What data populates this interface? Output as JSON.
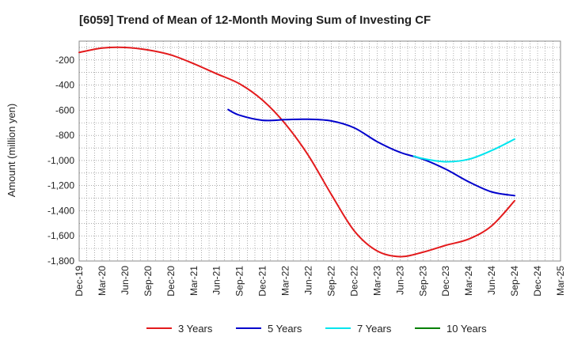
{
  "chart_data": {
    "type": "line",
    "title": "[6059]  Trend of Mean of 12-Month Moving Sum of Investing CF",
    "xlabel": "",
    "ylabel": "Amount (million yen)",
    "ylim": [
      -1800,
      -50
    ],
    "yticks": [
      -200,
      -400,
      -600,
      -800,
      -1000,
      -1200,
      -1400,
      -1600,
      -1800
    ],
    "ytick_labels": [
      "-200",
      "-400",
      "-600",
      "-800",
      "-1,000",
      "-1,200",
      "-1,400",
      "-1,600",
      "-1,800"
    ],
    "categories": [
      "Dec-19",
      "Mar-20",
      "Jun-20",
      "Sep-20",
      "Dec-20",
      "Mar-21",
      "Jun-21",
      "Sep-21",
      "Dec-21",
      "Mar-22",
      "Jun-22",
      "Sep-22",
      "Dec-22",
      "Mar-23",
      "Jun-23",
      "Sep-23",
      "Dec-23",
      "Mar-24",
      "Jun-24",
      "Sep-24",
      "Dec-24",
      "Mar-25"
    ],
    "series": [
      {
        "name": "3 Years",
        "color": "#e31a1c",
        "points": [
          [
            0,
            -140
          ],
          [
            1,
            -105
          ],
          [
            2,
            -100
          ],
          [
            3,
            -120
          ],
          [
            4,
            -160
          ],
          [
            5,
            -230
          ],
          [
            6,
            -310
          ],
          [
            7,
            -390
          ],
          [
            8,
            -520
          ],
          [
            9,
            -710
          ],
          [
            10,
            -960
          ],
          [
            11,
            -1270
          ],
          [
            12,
            -1560
          ],
          [
            13,
            -1720
          ],
          [
            14,
            -1765
          ],
          [
            15,
            -1730
          ],
          [
            16,
            -1675
          ],
          [
            17,
            -1625
          ],
          [
            18,
            -1520
          ],
          [
            19,
            -1320
          ]
        ]
      },
      {
        "name": "5 Years",
        "color": "#0000cc",
        "points": [
          [
            6.5,
            -595
          ],
          [
            7,
            -640
          ],
          [
            8,
            -680
          ],
          [
            9,
            -675
          ],
          [
            10,
            -672
          ],
          [
            11,
            -685
          ],
          [
            12,
            -740
          ],
          [
            13,
            -850
          ],
          [
            14,
            -935
          ],
          [
            15,
            -990
          ],
          [
            16,
            -1070
          ],
          [
            17,
            -1170
          ],
          [
            18,
            -1250
          ],
          [
            19,
            -1280
          ]
        ]
      },
      {
        "name": "7 Years",
        "color": "#00e5ee",
        "points": [
          [
            14.6,
            -965
          ],
          [
            15,
            -985
          ],
          [
            16,
            -1010
          ],
          [
            17,
            -990
          ],
          [
            18,
            -920
          ],
          [
            19,
            -830
          ]
        ]
      },
      {
        "name": "10 Years",
        "color": "#008000",
        "points": []
      }
    ],
    "grid": true,
    "legend": "bottom"
  }
}
